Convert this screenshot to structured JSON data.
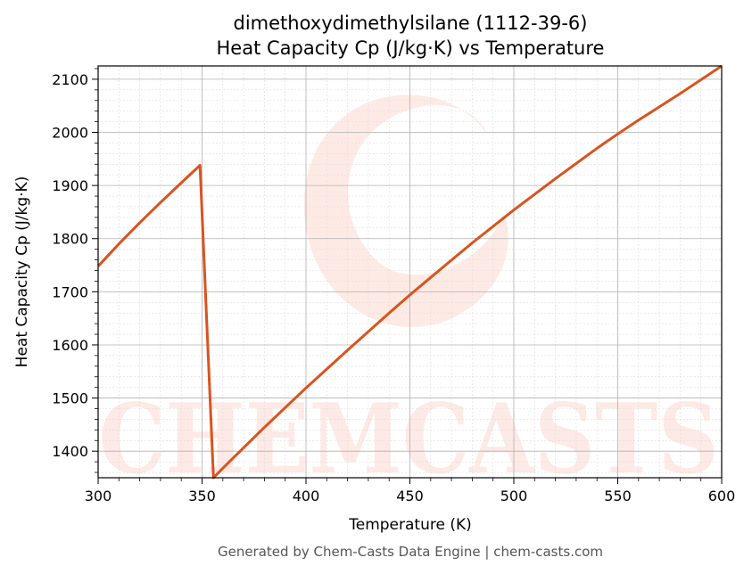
{
  "chart_data": {
    "type": "line",
    "title": "dimethoxydimethylsilane (1112-39-6)",
    "subtitle": "Heat Capacity Cp (J/kg·K) vs Temperature",
    "xlabel": "Temperature (K)",
    "ylabel": "Heat Capacity Cp (J/kg·K)",
    "xlim": [
      300,
      600
    ],
    "ylim": [
      1350,
      2125
    ],
    "xticks": [
      300,
      350,
      400,
      450,
      500,
      550,
      600
    ],
    "yticks": [
      1400,
      1500,
      1600,
      1700,
      1800,
      1900,
      2000,
      2100
    ],
    "grid": true,
    "series": [
      {
        "color": "#d9531e",
        "x": [
          300,
          310,
          320,
          330,
          340,
          349,
          355.5,
          360,
          380,
          400,
          420,
          440,
          450,
          460,
          480,
          500,
          520,
          540,
          550,
          560,
          580,
          600
        ],
        "y": [
          1748,
          1790,
          1830,
          1868,
          1905,
          1938,
          1350,
          1368,
          1445,
          1519,
          1590,
          1660,
          1694,
          1727,
          1792,
          1854,
          1913,
          1970,
          1997,
          2023,
          2073,
          2125
        ]
      }
    ],
    "watermark": "CHEMCASTS",
    "footer": "Generated by Chem-Casts Data Engine | chem-casts.com"
  }
}
